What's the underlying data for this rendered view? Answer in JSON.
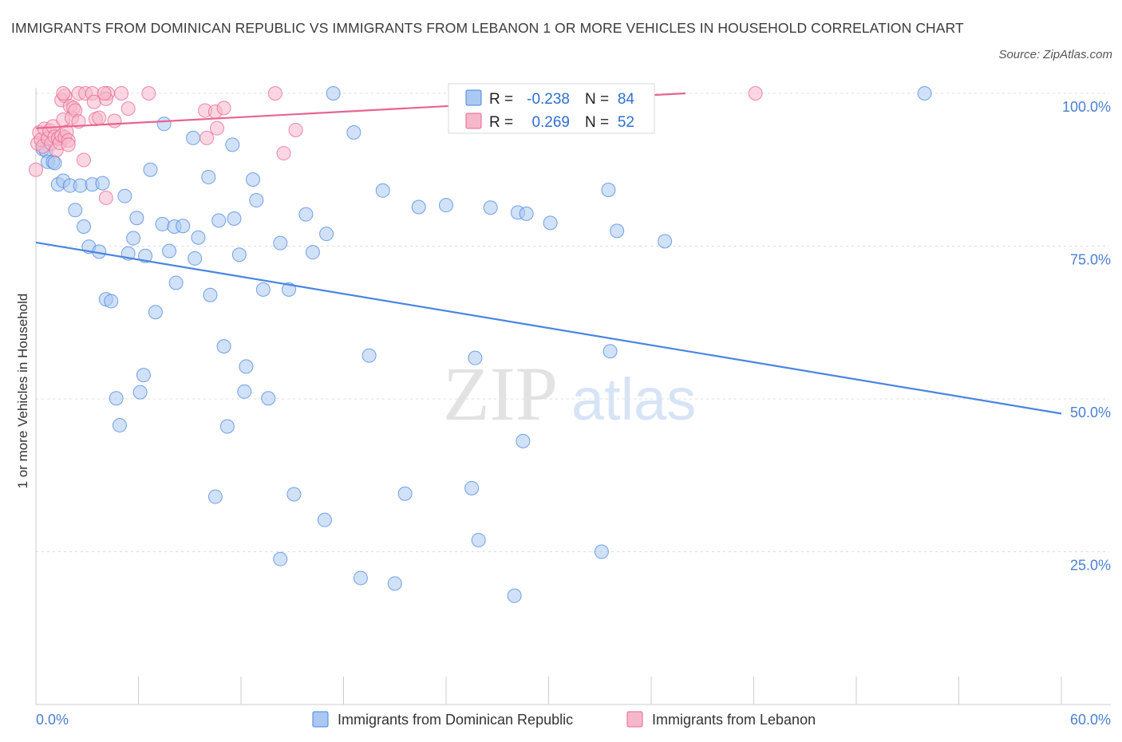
{
  "header": {
    "title": "IMMIGRANTS FROM DOMINICAN REPUBLIC VS IMMIGRANTS FROM LEBANON 1 OR MORE VEHICLES IN HOUSEHOLD CORRELATION CHART",
    "source": "Source: ZipAtlas.com"
  },
  "watermark": {
    "zip": "ZIP",
    "atlas": "atlas"
  },
  "colors": {
    "blue": "#4a85e0",
    "blue_fill": "#a9c8f2",
    "pink": "#e8648f",
    "pink_fill": "#f6b7cb",
    "tick": "#4a7fd4"
  },
  "chart_data": {
    "type": "scatter",
    "title": "IMMIGRANTS FROM DOMINICAN REPUBLIC VS IMMIGRANTS FROM LEBANON 1 OR MORE VEHICLES IN HOUSEHOLD CORRELATION CHART",
    "xlabel": "",
    "ylabel": "1 or more Vehicles in Household",
    "xlim": [
      0,
      60
    ],
    "ylim": [
      0,
      100
    ],
    "x_tick_labels": [
      "0.0%",
      "60.0%"
    ],
    "y_ticks": [
      25,
      50,
      75,
      100
    ],
    "y_tick_labels": [
      "25.0%",
      "50.0%",
      "75.0%",
      "100.0%"
    ],
    "legend": {
      "stats": [
        {
          "r_label": "R =",
          "r": "-0.238",
          "n_label": "N =",
          "n": "84"
        },
        {
          "r_label": "R =",
          "r": "0.269",
          "n_label": "N =",
          "n": "52"
        }
      ],
      "items": [
        "Immigrants from Dominican Republic",
        "Immigrants from Lebanon"
      ]
    },
    "series": [
      {
        "name": "Immigrants from Dominican Republic",
        "color": "#4a85e0",
        "trend": {
          "x": [
            0,
            60
          ],
          "y": [
            75.6,
            47.6
          ]
        },
        "points": [
          [
            0.4,
            90.9
          ],
          [
            0.6,
            90.6
          ],
          [
            0.7,
            88.8
          ],
          [
            1.0,
            88.8
          ],
          [
            1.3,
            85.1
          ],
          [
            1.6,
            85.7
          ],
          [
            2.0,
            84.9
          ],
          [
            2.6,
            84.9
          ],
          [
            3.3,
            85.1
          ],
          [
            3.9,
            85.3
          ],
          [
            2.3,
            80.9
          ],
          [
            2.8,
            78.2
          ],
          [
            3.1,
            74.9
          ],
          [
            3.7,
            74.1
          ],
          [
            5.2,
            83.2
          ],
          [
            5.9,
            79.6
          ],
          [
            5.7,
            76.3
          ],
          [
            5.4,
            73.8
          ],
          [
            6.4,
            73.4
          ],
          [
            6.7,
            87.5
          ],
          [
            7.5,
            95.0
          ],
          [
            7.4,
            78.6
          ],
          [
            8.1,
            78.2
          ],
          [
            8.6,
            78.3
          ],
          [
            7.8,
            74.2
          ],
          [
            9.2,
            92.7
          ],
          [
            9.5,
            76.4
          ],
          [
            9.3,
            73.0
          ],
          [
            10.1,
            86.3
          ],
          [
            10.7,
            79.2
          ],
          [
            11.5,
            91.6
          ],
          [
            11.6,
            79.5
          ],
          [
            11.9,
            73.6
          ],
          [
            12.7,
            85.9
          ],
          [
            12.9,
            82.5
          ],
          [
            14.3,
            75.5
          ],
          [
            15.8,
            80.2
          ],
          [
            16.2,
            74.0
          ],
          [
            17.0,
            77.0
          ],
          [
            17.4,
            100.0
          ],
          [
            18.6,
            93.6
          ],
          [
            20.3,
            84.1
          ],
          [
            22.4,
            81.4
          ],
          [
            24.0,
            81.7
          ],
          [
            26.6,
            81.3
          ],
          [
            28.2,
            80.5
          ],
          [
            28.7,
            80.3
          ],
          [
            30.1,
            78.8
          ],
          [
            33.5,
            84.2
          ],
          [
            34.0,
            77.5
          ],
          [
            36.8,
            75.8
          ],
          [
            52.0,
            100.0
          ],
          [
            4.1,
            66.3
          ],
          [
            4.4,
            66.0
          ],
          [
            7.0,
            64.2
          ],
          [
            8.2,
            69.0
          ],
          [
            10.2,
            67.0
          ],
          [
            13.3,
            67.9
          ],
          [
            14.8,
            67.9
          ],
          [
            11.0,
            58.6
          ],
          [
            12.3,
            55.3
          ],
          [
            12.2,
            51.2
          ],
          [
            6.3,
            53.9
          ],
          [
            6.1,
            51.1
          ],
          [
            4.7,
            50.1
          ],
          [
            13.6,
            50.1
          ],
          [
            4.9,
            45.7
          ],
          [
            11.2,
            45.5
          ],
          [
            19.5,
            57.1
          ],
          [
            25.7,
            56.7
          ],
          [
            33.6,
            57.8
          ],
          [
            28.5,
            43.1
          ],
          [
            10.5,
            34.0
          ],
          [
            15.1,
            34.4
          ],
          [
            21.6,
            34.5
          ],
          [
            25.5,
            35.4
          ],
          [
            16.9,
            30.2
          ],
          [
            25.9,
            26.9
          ],
          [
            33.1,
            25.0
          ],
          [
            14.3,
            23.8
          ],
          [
            19.0,
            20.7
          ],
          [
            21.0,
            19.8
          ],
          [
            28.0,
            17.8
          ],
          [
            1.1,
            88.6
          ]
        ]
      },
      {
        "name": "Immigrants from Lebanon",
        "color": "#e8648f",
        "trend": {
          "x": [
            0,
            38
          ],
          "y": [
            94.3,
            100.0
          ]
        },
        "points": [
          [
            0.0,
            87.5
          ],
          [
            0.1,
            91.8
          ],
          [
            0.2,
            93.6
          ],
          [
            0.3,
            92.4
          ],
          [
            0.4,
            91.3
          ],
          [
            0.5,
            94.2
          ],
          [
            0.7,
            92.6
          ],
          [
            0.8,
            93.9
          ],
          [
            0.9,
            91.8
          ],
          [
            1.0,
            94.6
          ],
          [
            1.1,
            92.9
          ],
          [
            1.2,
            90.7
          ],
          [
            1.3,
            92.6
          ],
          [
            1.4,
            91.9
          ],
          [
            1.5,
            93.1
          ],
          [
            1.6,
            95.7
          ],
          [
            1.7,
            92.8
          ],
          [
            1.8,
            93.7
          ],
          [
            1.9,
            92.3
          ],
          [
            2.1,
            96.0
          ],
          [
            1.5,
            98.9
          ],
          [
            1.7,
            99.6
          ],
          [
            1.6,
            100.0
          ],
          [
            2.0,
            97.9
          ],
          [
            2.2,
            97.6
          ],
          [
            2.3,
            97.2
          ],
          [
            2.5,
            100.0
          ],
          [
            2.9,
            100.0
          ],
          [
            3.3,
            100.0
          ],
          [
            3.4,
            98.6
          ],
          [
            3.5,
            95.8
          ],
          [
            4.2,
            100.0
          ],
          [
            4.1,
            99.1
          ],
          [
            4.0,
            100.0
          ],
          [
            4.6,
            95.5
          ],
          [
            5.0,
            100.0
          ],
          [
            5.4,
            97.5
          ],
          [
            6.6,
            100.0
          ],
          [
            9.9,
            97.2
          ],
          [
            10.6,
            94.3
          ],
          [
            10.5,
            97.0
          ],
          [
            11.0,
            97.6
          ],
          [
            10.0,
            92.7
          ],
          [
            14.0,
            100.0
          ],
          [
            14.5,
            90.2
          ],
          [
            15.2,
            94.0
          ],
          [
            42.1,
            100.0
          ],
          [
            2.8,
            89.1
          ],
          [
            4.1,
            82.9
          ],
          [
            1.9,
            91.6
          ],
          [
            2.5,
            95.4
          ],
          [
            3.7,
            96.0
          ]
        ]
      }
    ]
  }
}
